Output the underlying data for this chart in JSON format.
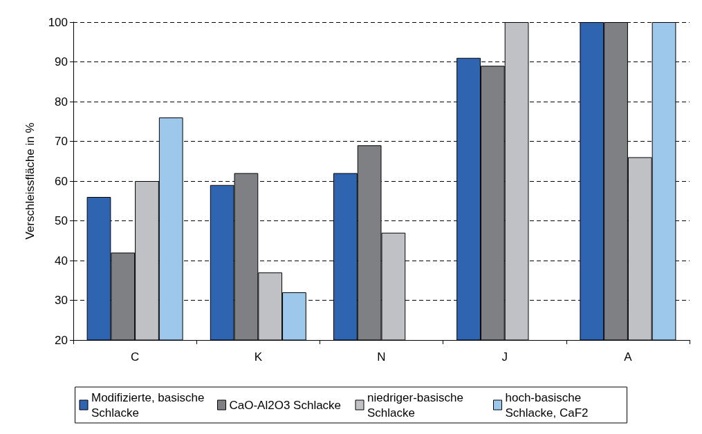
{
  "chart_data": {
    "type": "bar",
    "ylabel": "Verschleissfläche in %",
    "categories": [
      "C",
      "K",
      "N",
      "J",
      "A"
    ],
    "series": [
      {
        "name": "Modifizierte, basische Schlacke",
        "color": "#2e64b0",
        "values": [
          56,
          59,
          62,
          91,
          100
        ]
      },
      {
        "name": "CaO-Al2O3 Schlacke",
        "color": "#7f8083",
        "values": [
          42,
          62,
          69,
          89,
          100
        ]
      },
      {
        "name": "niedriger-basische Schlacke",
        "color": "#c0c1c5",
        "values": [
          60,
          37,
          47,
          100,
          66
        ]
      },
      {
        "name": "hoch-basische Schlacke, CaF2",
        "color": "#9dc8eb",
        "values": [
          76,
          32,
          null,
          null,
          100
        ]
      }
    ],
    "ylim": [
      20,
      100
    ],
    "yticks": [
      20,
      30,
      40,
      50,
      60,
      70,
      80,
      90,
      100
    ],
    "grid": "y",
    "legend": "bottom"
  }
}
